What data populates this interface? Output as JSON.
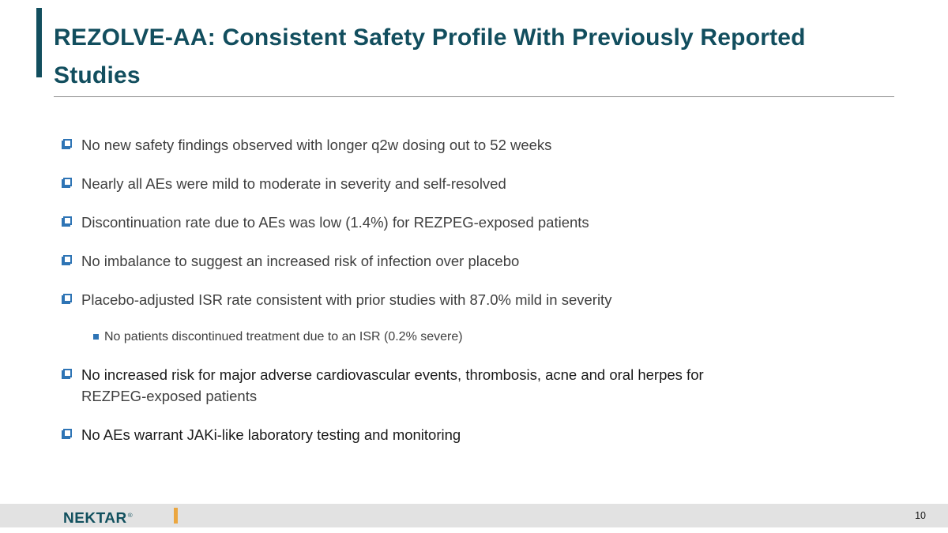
{
  "title": {
    "full_text": "REZOLVE-AA: Consistent Safety Profile With Previously Reported Studies",
    "lines": [
      "REZOLVE-AA: Consistent Safety Profile With Previously Reported",
      "Studies"
    ]
  },
  "colors": {
    "title_teal": "#124E5E",
    "accent_bar": "#124E5E",
    "bullet_blue": "#2E74B5",
    "text_gray": "#3F3F3F",
    "text_black": "#1A1A1A",
    "rule_gray": "#8C8C8C",
    "footer_band_gray": "#E2E2E2",
    "footer_gold": "#EBA63F"
  },
  "bullets": [
    {
      "level": 1,
      "runs": [
        {
          "text": "No new safety findings observed with longer q2w dosing out to 52 weeks",
          "shade": "gray"
        }
      ]
    },
    {
      "level": 1,
      "runs": [
        {
          "text": "Nearly all AEs were mild to moderate in severity and self-resolved",
          "shade": "gray"
        }
      ]
    },
    {
      "level": 1,
      "runs": [
        {
          "text": "Discontinuation rate due to AEs was low (1.4%) for REZPEG-exposed patients",
          "shade": "gray"
        }
      ]
    },
    {
      "level": 1,
      "runs": [
        {
          "text": "No imbalance to suggest an increased risk of infection over placebo",
          "shade": "gray"
        }
      ]
    },
    {
      "level": 1,
      "runs": [
        {
          "text": "Placebo-adjusted ISR rate consistent with prior studies with 87.0% mild in severity",
          "shade": "gray"
        }
      ]
    },
    {
      "level": 2,
      "runs": [
        {
          "text": "No patients discontinued treatment due to an ISR (0.2% severe)",
          "shade": "gray"
        }
      ]
    },
    {
      "level": 1,
      "runs": [
        {
          "text": "No increased risk for major adverse cardiovascular events, thrombosis, acne and oral herpes for",
          "shade": "black",
          "block": true
        },
        {
          "text": "REZPEG-exposed patients",
          "shade": "gray",
          "block": true
        }
      ]
    },
    {
      "level": 1,
      "runs": [
        {
          "text": "No AEs warrant JAKi-like laboratory testing and monitoring",
          "shade": "black"
        }
      ]
    }
  ],
  "footer": {
    "logo_text": "NEKTAR",
    "reg_mark": "®",
    "page_number": "10"
  }
}
